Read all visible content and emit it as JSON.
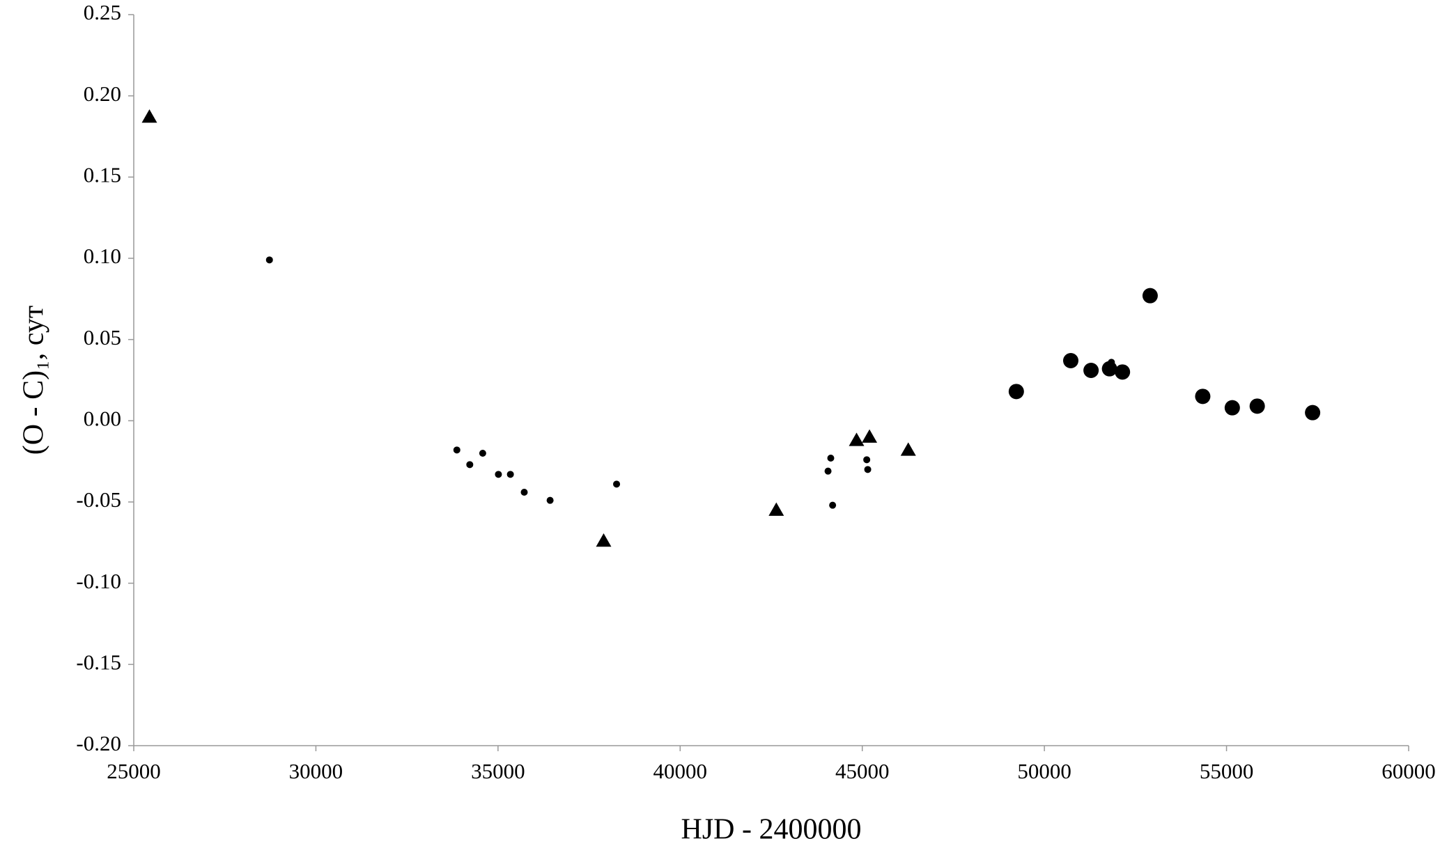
{
  "chart_data": {
    "type": "scatter",
    "x_label": "HJD - 2400000",
    "y_label": "(O - C)₁, сут",
    "xlim": [
      25000,
      60000
    ],
    "xticks": [
      25000,
      30000,
      35000,
      40000,
      45000,
      50000,
      55000,
      60000
    ],
    "ylim": [
      -0.2,
      0.25
    ],
    "yticks": [
      {
        "value": -0.2,
        "label": "-0.20"
      },
      -0.15,
      {
        "value": -0.1,
        "label": "-0.10"
      },
      -0.05,
      {
        "value": 0,
        "label": "0.00"
      },
      0.05,
      {
        "value": 0.1,
        "label": "0.10"
      },
      0.15,
      {
        "value": 0.2,
        "label": "0.20"
      },
      0.25
    ],
    "series": [
      {
        "color": "#000000",
        "marker": "triangle",
        "size": 11,
        "x": [
          25430,
          37900,
          42640,
          44843,
          45198,
          46263
        ],
        "values": [
          0.187,
          -0.074,
          -0.055,
          -0.012,
          -0.01,
          -0.018
        ]
      },
      {
        "color": "#000000",
        "marker": "circle",
        "size": 5,
        "x": [
          28725,
          33870,
          34225,
          34580,
          35011,
          35340,
          35720,
          36430,
          38255,
          44060,
          44135,
          44186,
          45123,
          45150,
          51840
        ],
        "values": [
          0.099,
          -0.018,
          -0.027,
          -0.02,
          -0.033,
          -0.033,
          -0.044,
          -0.049,
          -0.039,
          -0.031,
          -0.023,
          -0.052,
          -0.024,
          -0.03,
          0.036
        ]
      },
      {
        "color": "#000000",
        "marker": "circle",
        "size": 11,
        "x": [
          49229,
          50724,
          51281,
          51788,
          52143,
          52903,
          54347,
          55158,
          55843,
          57363
        ],
        "values": [
          0.018,
          0.037,
          0.031,
          0.032,
          0.03,
          0.077,
          0.015,
          0.008,
          0.009,
          0.005
        ]
      }
    ]
  }
}
